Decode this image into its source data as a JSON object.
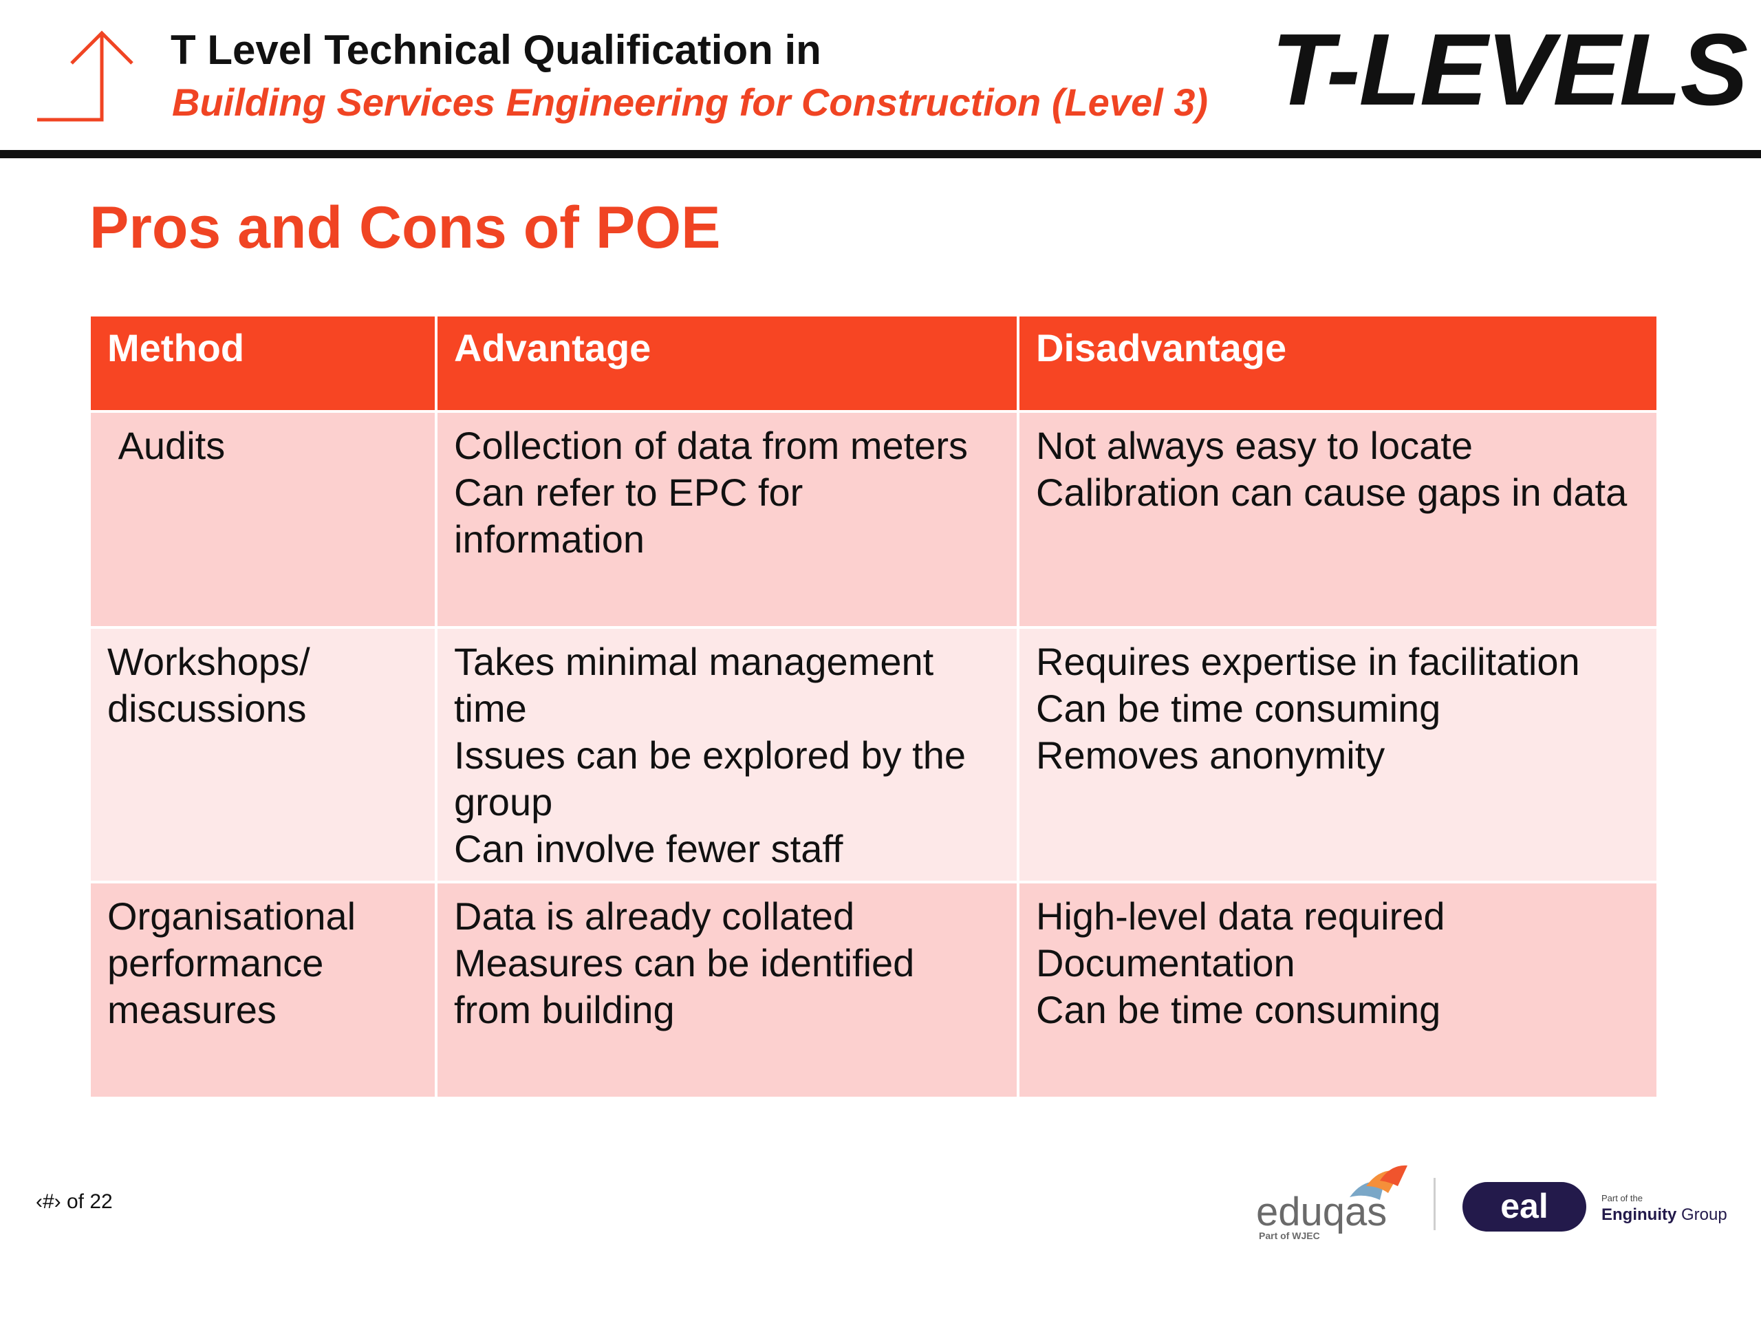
{
  "header": {
    "title": "T Level Technical Qualification in",
    "subtitle": "Building Services Engineering for Construction (Level 3)",
    "logo_text": "T-LEVELS",
    "accent_color": "#f04423"
  },
  "slide": {
    "title": "Pros and Cons of POE"
  },
  "table": {
    "headers": [
      "Method",
      "Advantage",
      "Disadvantage"
    ],
    "rows": [
      {
        "method": [
          " Audits"
        ],
        "advantage": [
          "Collection of data from meters",
          "Can refer to EPC for information"
        ],
        "disadvantage": [
          "Not always easy to locate",
          "Calibration can cause gaps in data"
        ]
      },
      {
        "method": [
          "Workshops/ discussions"
        ],
        "advantage": [
          "Takes minimal management time",
          "Issues can be explored by the group",
          "Can involve fewer staff"
        ],
        "disadvantage": [
          "Requires expertise in facilitation",
          "Can be time consuming",
          "Removes anonymity"
        ]
      },
      {
        "method": [
          "Organisational performance measures"
        ],
        "advantage": [
          "Data is already collated",
          "Measures can be identified from building"
        ],
        "disadvantage": [
          "High-level data required",
          "Documentation",
          "Can be time consuming"
        ]
      }
    ],
    "header_color": "#f74523",
    "row_color": "#fcd0cf",
    "row_alt_color": "#fde8e8"
  },
  "footer": {
    "page_text": "‹#› of 22",
    "eduqas": {
      "name": "eduqas",
      "tagline": "Part of WJEC"
    },
    "eal": {
      "name": "eal"
    },
    "enginuity": {
      "prefix": "Part of the",
      "name": "Enginuity",
      "suffix": "Group"
    }
  }
}
